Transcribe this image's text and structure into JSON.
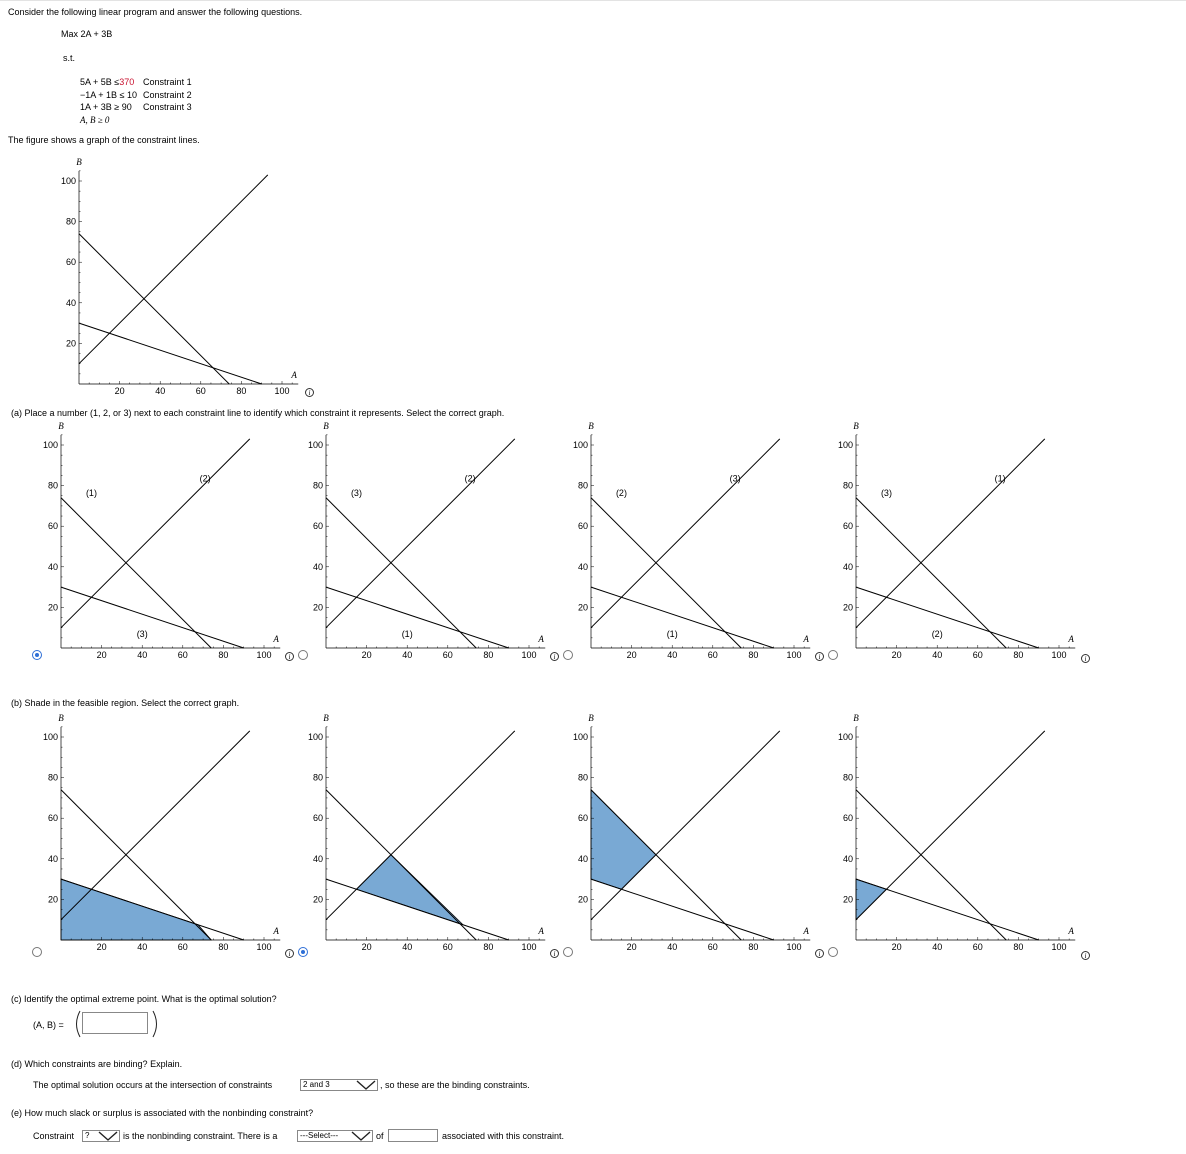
{
  "intro": "Consider the following linear program and answer the following questions.",
  "objective": "Max 2A + 3B",
  "st": "s.t.",
  "constraints": [
    {
      "lhs": "5A + 5B",
      "rel": "≤",
      "rhs": "370",
      "name": "Constraint 1"
    },
    {
      "lhs": "−1A + 1B",
      "rel": "≤",
      "rhs": "10",
      "name": "Constraint 2"
    },
    {
      "lhs": "1A + 3B",
      "rel": "≥",
      "rhs": "90",
      "name": "Constraint 3"
    }
  ],
  "nonneg": "A, B ≥ 0",
  "figure_caption": "The figure shows a graph of the constraint lines.",
  "axis": {
    "x_label": "A",
    "y_label": "B",
    "x_ticks": [
      "20",
      "40",
      "60",
      "80",
      "100"
    ],
    "y_ticks": [
      "100",
      "80",
      "60",
      "40",
      "20"
    ]
  },
  "info_icon": "i",
  "colors": {
    "feasible_fill": "#79a9d4",
    "radio_selected": "#2f6fd6",
    "red_value": "#c8102e"
  },
  "part_a": {
    "question": "(a)  Place a number (1, 2, or 3) next to each constraint line to identify which constraint it represents. Select the correct graph.",
    "options": [
      {
        "selected": true,
        "labels": {
          "c1_line": "(1)",
          "c2_line": "(2)",
          "c3_line": "(3)"
        }
      },
      {
        "selected": false,
        "labels": {
          "c1_line": "(3)",
          "c2_line": "(2)",
          "c3_line": "(1)"
        }
      },
      {
        "selected": false,
        "labels": {
          "c1_line": "(2)",
          "c2_line": "(3)",
          "c3_line": "(1)"
        }
      },
      {
        "selected": false,
        "labels": {
          "c1_line": "(3)",
          "c2_line": "(1)",
          "c3_line": "(2)"
        }
      }
    ]
  },
  "part_b": {
    "question": "(b)  Shade in the feasible region. Select the correct graph.",
    "options": [
      {
        "selected": false,
        "region": "below-c1-below-c3"
      },
      {
        "selected": true,
        "region": "feasible"
      },
      {
        "selected": false,
        "region": "above-c2"
      },
      {
        "selected": false,
        "region": "small-left"
      }
    ]
  },
  "part_c": {
    "question": "(c)  Identify the optimal extreme point. What is the optimal solution?",
    "label": "(A, B) =",
    "value": ""
  },
  "part_d": {
    "question": "(d)  Which constraints are binding? Explain.",
    "prefix": "The optimal solution occurs at the intersection of constraints",
    "selected": "2 and 3",
    "suffix": ", so these are the binding constraints."
  },
  "part_e": {
    "question": "(e)  How much slack or surplus is associated with the nonbinding constraint?",
    "prefix": "Constraint",
    "constraint_select": "?",
    "middle": "is the nonbinding constraint. There is a",
    "type_select": "---Select---",
    "of": "of",
    "value": "",
    "suffix": "associated with this constraint."
  }
}
